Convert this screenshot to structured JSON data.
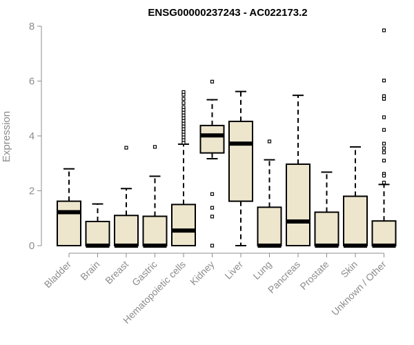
{
  "chart_data": {
    "type": "box",
    "title": "ENSG00000237243 - AC022173.2",
    "xlabel": "",
    "ylabel": "Expression",
    "ylim": [
      0,
      8
    ],
    "yticks": [
      0,
      2,
      4,
      6,
      8
    ],
    "box_fill": "#ede6cd",
    "box_stroke": "#000000",
    "axis_color": "#8c8c8c",
    "grid": false,
    "categories": [
      "Bladder",
      "Brain",
      "Breast",
      "Gastric",
      "Hematopoietic cells",
      "Kidney",
      "Liver",
      "Lung",
      "Pancreas",
      "Prostate",
      "Skin",
      "Unknown / Other"
    ],
    "boxes": [
      {
        "category": "Bladder",
        "whisker_low": 0,
        "q1": 0,
        "median": 1.22,
        "q3": 1.62,
        "whisker_high": 2.8,
        "outliers": []
      },
      {
        "category": "Brain",
        "whisker_low": 0,
        "q1": 0,
        "median": 0,
        "q3": 0.88,
        "whisker_high": 1.52,
        "outliers": []
      },
      {
        "category": "Breast",
        "whisker_low": 0,
        "q1": 0,
        "median": 0,
        "q3": 1.1,
        "whisker_high": 2.08,
        "outliers": [
          3.57
        ]
      },
      {
        "category": "Gastric",
        "whisker_low": 0,
        "q1": 0,
        "median": 0,
        "q3": 1.07,
        "whisker_high": 2.53,
        "outliers": [
          3.6
        ]
      },
      {
        "category": "Hematopoietic cells",
        "whisker_low": 0,
        "q1": 0,
        "median": 0.55,
        "q3": 1.5,
        "whisker_high": 3.7,
        "outliers": [
          3.75,
          3.85,
          3.95,
          4.05,
          4.15,
          4.25,
          4.35,
          4.45,
          4.55,
          4.65,
          4.75,
          4.85,
          4.95,
          5.05,
          5.2,
          5.35,
          5.5,
          5.6
        ]
      },
      {
        "category": "Kidney",
        "whisker_low": 3.17,
        "q1": 3.38,
        "median": 4.02,
        "q3": 4.38,
        "whisker_high": 5.32,
        "outliers": [
          5.98,
          1.88,
          1.38,
          1.06,
          0.0
        ]
      },
      {
        "category": "Liver",
        "whisker_low": 0,
        "q1": 1.62,
        "median": 3.72,
        "q3": 4.53,
        "whisker_high": 5.62,
        "outliers": []
      },
      {
        "category": "Lung",
        "whisker_low": 0,
        "q1": 0,
        "median": 0,
        "q3": 1.4,
        "whisker_high": 3.13,
        "outliers": [
          3.8
        ]
      },
      {
        "category": "Pancreas",
        "whisker_low": 0,
        "q1": 0,
        "median": 0.88,
        "q3": 2.97,
        "whisker_high": 5.48,
        "outliers": []
      },
      {
        "category": "Prostate",
        "whisker_low": 0,
        "q1": 0,
        "median": 0,
        "q3": 1.22,
        "whisker_high": 2.68,
        "outliers": []
      },
      {
        "category": "Skin",
        "whisker_low": 0,
        "q1": 0,
        "median": 0,
        "q3": 1.8,
        "whisker_high": 3.6,
        "outliers": []
      },
      {
        "category": "Unknown / Other",
        "whisker_low": 0,
        "q1": 0,
        "median": 0,
        "q3": 0.9,
        "whisker_high": 2.23,
        "outliers": [
          7.85,
          6.02,
          5.45,
          5.35,
          4.68,
          4.22,
          3.72,
          3.55,
          3.4,
          3.1,
          2.62,
          2.55,
          2.3
        ]
      }
    ]
  }
}
